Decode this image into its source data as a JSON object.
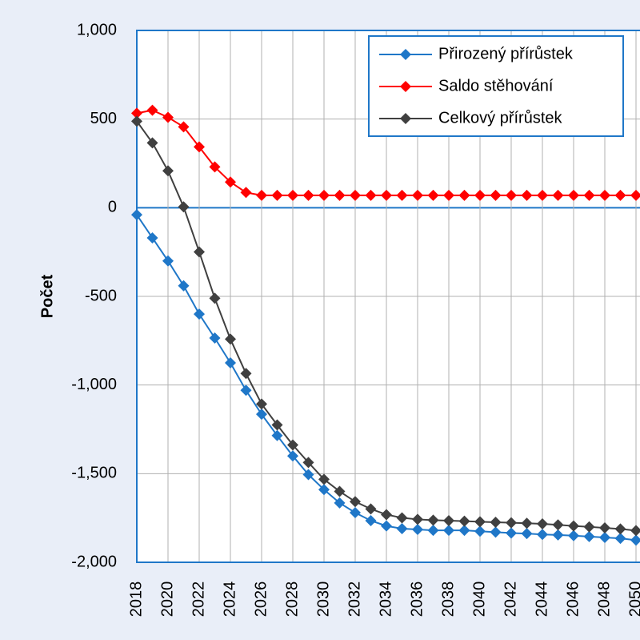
{
  "chart_data": {
    "type": "line",
    "y_label": "Počet",
    "x": [
      2018,
      2019,
      2020,
      2021,
      2022,
      2023,
      2024,
      2025,
      2026,
      2027,
      2028,
      2029,
      2030,
      2031,
      2032,
      2033,
      2034,
      2035,
      2036,
      2037,
      2038,
      2039,
      2040,
      2041,
      2042,
      2043,
      2044,
      2045,
      2046,
      2047,
      2048,
      2049,
      2050
    ],
    "xlim": [
      2018,
      2050
    ],
    "xticks": [
      2018,
      2020,
      2022,
      2024,
      2026,
      2028,
      2030,
      2032,
      2034,
      2036,
      2038,
      2040,
      2042,
      2044,
      2046,
      2048,
      2050
    ],
    "ylim": [
      -2000,
      1000
    ],
    "yticks": [
      {
        "value": -2000,
        "label": "-2,000"
      },
      {
        "value": -1500,
        "label": "-1,500"
      },
      {
        "value": -1000,
        "label": "-1,000"
      },
      -500,
      0,
      500,
      {
        "value": 1000,
        "label": "1,000"
      }
    ],
    "grid": true,
    "legend": "top-right",
    "series": [
      {
        "name": "Přirozený přírůstek",
        "color": "#1f77c8",
        "values": [
          -40,
          -170,
          -300,
          -440,
          -600,
          -735,
          -875,
          -1030,
          -1165,
          -1285,
          -1400,
          -1505,
          -1590,
          -1665,
          -1720,
          -1765,
          -1795,
          -1810,
          -1815,
          -1820,
          -1820,
          -1820,
          -1825,
          -1830,
          -1835,
          -1838,
          -1843,
          -1846,
          -1850,
          -1855,
          -1860,
          -1865,
          -1875
        ]
      },
      {
        "name": "Saldo stěhování",
        "color": "#ff0000",
        "values": [
          533,
          550,
          510,
          456,
          343,
          230,
          145,
          86,
          70,
          70,
          70,
          70,
          70,
          70,
          70,
          70,
          70,
          70,
          70,
          70,
          70,
          70,
          70,
          70,
          70,
          70,
          70,
          70,
          70,
          70,
          70,
          70,
          70
        ]
      },
      {
        "name": "Celkový přírůstek",
        "color": "#404040",
        "values": [
          488,
          366,
          208,
          5,
          -249,
          -511,
          -741,
          -935,
          -1107,
          -1225,
          -1338,
          -1437,
          -1532,
          -1600,
          -1658,
          -1699,
          -1731,
          -1749,
          -1758,
          -1762,
          -1765,
          -1768,
          -1771,
          -1774,
          -1777,
          -1780,
          -1783,
          -1789,
          -1795,
          -1800,
          -1806,
          -1812,
          -1821
        ]
      }
    ]
  }
}
